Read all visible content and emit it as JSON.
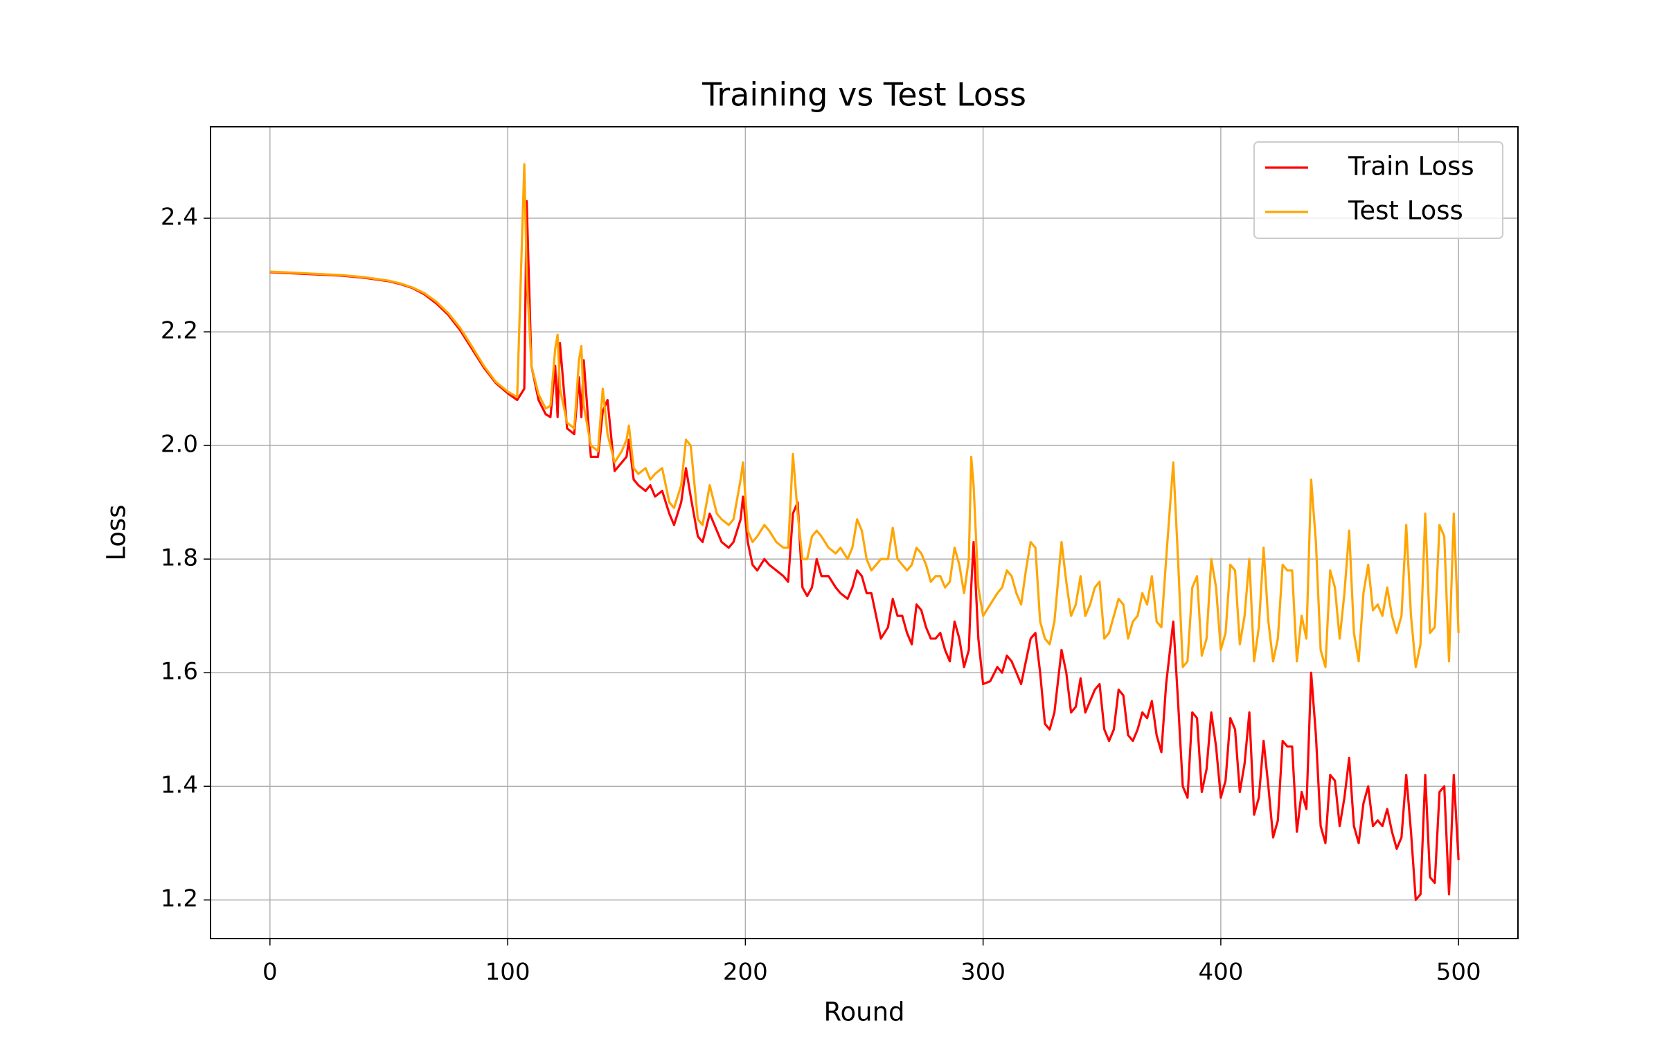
{
  "chart_data": {
    "type": "line",
    "title": "Training vs Test Loss",
    "x_label": "Round",
    "y_label": "Loss",
    "x": [
      0,
      10,
      20,
      30,
      40,
      50,
      55,
      60,
      65,
      70,
      75,
      80,
      85,
      90,
      95,
      100,
      104,
      107,
      108,
      110,
      113,
      116,
      118,
      120,
      121,
      122,
      125,
      128,
      130,
      131,
      132,
      135,
      138,
      140,
      142,
      145,
      148,
      150,
      151,
      153,
      155,
      158,
      160,
      162,
      165,
      168,
      170,
      173,
      175,
      177,
      180,
      182,
      185,
      188,
      190,
      193,
      195,
      198,
      199,
      201,
      203,
      205,
      208,
      210,
      213,
      216,
      218,
      220,
      222,
      224,
      226,
      228,
      230,
      232,
      235,
      238,
      240,
      243,
      245,
      247,
      249,
      251,
      253,
      255,
      257,
      260,
      262,
      264,
      266,
      268,
      270,
      272,
      274,
      276,
      278,
      280,
      282,
      284,
      286,
      288,
      290,
      292,
      294,
      295,
      296,
      298,
      300,
      303,
      306,
      308,
      310,
      312,
      314,
      316,
      318,
      320,
      322,
      324,
      326,
      328,
      330,
      333,
      335,
      337,
      339,
      341,
      343,
      345,
      347,
      349,
      351,
      353,
      355,
      357,
      359,
      361,
      363,
      365,
      367,
      369,
      371,
      373,
      375,
      377,
      380,
      382,
      384,
      386,
      388,
      390,
      392,
      394,
      396,
      398,
      400,
      402,
      404,
      406,
      408,
      410,
      412,
      414,
      416,
      418,
      420,
      422,
      424,
      426,
      428,
      430,
      432,
      434,
      436,
      438,
      440,
      442,
      444,
      446,
      448,
      450,
      452,
      454,
      456,
      458,
      460,
      462,
      464,
      466,
      468,
      470,
      472,
      474,
      476,
      478,
      480,
      482,
      484,
      486,
      488,
      490,
      492,
      494,
      496,
      498,
      500
    ],
    "series": [
      {
        "name": "Train Loss",
        "color": "#ff0000",
        "values": [
          2.305,
          2.303,
          2.301,
          2.299,
          2.295,
          2.289,
          2.284,
          2.277,
          2.266,
          2.25,
          2.23,
          2.203,
          2.17,
          2.137,
          2.11,
          2.092,
          2.08,
          2.1,
          2.43,
          2.14,
          2.08,
          2.055,
          2.05,
          2.14,
          2.05,
          2.18,
          2.03,
          2.02,
          2.12,
          2.05,
          2.15,
          1.98,
          1.98,
          2.06,
          2.08,
          1.955,
          1.97,
          1.98,
          2.01,
          1.94,
          1.93,
          1.92,
          1.93,
          1.91,
          1.92,
          1.88,
          1.86,
          1.9,
          1.96,
          1.91,
          1.84,
          1.83,
          1.88,
          1.85,
          1.83,
          1.82,
          1.83,
          1.87,
          1.91,
          1.83,
          1.79,
          1.78,
          1.8,
          1.79,
          1.78,
          1.77,
          1.76,
          1.88,
          1.9,
          1.75,
          1.735,
          1.75,
          1.8,
          1.77,
          1.77,
          1.75,
          1.74,
          1.73,
          1.75,
          1.78,
          1.77,
          1.74,
          1.74,
          1.7,
          1.66,
          1.68,
          1.73,
          1.7,
          1.7,
          1.67,
          1.65,
          1.72,
          1.71,
          1.68,
          1.66,
          1.66,
          1.67,
          1.64,
          1.62,
          1.69,
          1.66,
          1.61,
          1.64,
          1.75,
          1.83,
          1.66,
          1.58,
          1.585,
          1.61,
          1.6,
          1.63,
          1.62,
          1.6,
          1.58,
          1.62,
          1.66,
          1.67,
          1.6,
          1.51,
          1.5,
          1.53,
          1.64,
          1.6,
          1.53,
          1.54,
          1.59,
          1.53,
          1.55,
          1.57,
          1.58,
          1.5,
          1.48,
          1.5,
          1.57,
          1.56,
          1.49,
          1.48,
          1.5,
          1.53,
          1.52,
          1.55,
          1.49,
          1.46,
          1.58,
          1.69,
          1.55,
          1.4,
          1.38,
          1.53,
          1.52,
          1.39,
          1.43,
          1.53,
          1.47,
          1.38,
          1.41,
          1.52,
          1.5,
          1.39,
          1.44,
          1.53,
          1.35,
          1.38,
          1.48,
          1.4,
          1.31,
          1.34,
          1.48,
          1.47,
          1.47,
          1.32,
          1.39,
          1.36,
          1.6,
          1.49,
          1.33,
          1.3,
          1.42,
          1.41,
          1.33,
          1.38,
          1.45,
          1.33,
          1.3,
          1.37,
          1.4,
          1.33,
          1.34,
          1.33,
          1.36,
          1.32,
          1.29,
          1.31,
          1.42,
          1.32,
          1.2,
          1.21,
          1.42,
          1.24,
          1.23,
          1.39,
          1.4,
          1.21,
          1.42,
          1.27
        ]
      },
      {
        "name": "Test Loss",
        "color": "#ffa500",
        "values": [
          2.306,
          2.304,
          2.302,
          2.3,
          2.296,
          2.29,
          2.285,
          2.278,
          2.268,
          2.253,
          2.233,
          2.207,
          2.174,
          2.14,
          2.112,
          2.095,
          2.085,
          2.495,
          2.3,
          2.14,
          2.09,
          2.065,
          2.07,
          2.17,
          2.195,
          2.1,
          2.04,
          2.03,
          2.15,
          2.175,
          2.07,
          2.0,
          1.99,
          2.1,
          2.02,
          1.97,
          1.99,
          2.01,
          2.035,
          1.96,
          1.95,
          1.96,
          1.94,
          1.95,
          1.96,
          1.9,
          1.89,
          1.93,
          2.01,
          2.0,
          1.87,
          1.86,
          1.93,
          1.88,
          1.87,
          1.86,
          1.87,
          1.94,
          1.97,
          1.85,
          1.83,
          1.84,
          1.86,
          1.85,
          1.83,
          1.82,
          1.82,
          1.985,
          1.88,
          1.8,
          1.8,
          1.84,
          1.85,
          1.84,
          1.82,
          1.81,
          1.82,
          1.8,
          1.82,
          1.87,
          1.85,
          1.8,
          1.78,
          1.79,
          1.8,
          1.8,
          1.855,
          1.8,
          1.79,
          1.78,
          1.79,
          1.82,
          1.81,
          1.79,
          1.76,
          1.77,
          1.77,
          1.75,
          1.76,
          1.82,
          1.79,
          1.74,
          1.8,
          1.98,
          1.93,
          1.75,
          1.7,
          1.72,
          1.74,
          1.75,
          1.78,
          1.77,
          1.74,
          1.72,
          1.78,
          1.83,
          1.82,
          1.69,
          1.66,
          1.65,
          1.69,
          1.83,
          1.76,
          1.7,
          1.72,
          1.77,
          1.7,
          1.72,
          1.75,
          1.76,
          1.66,
          1.67,
          1.7,
          1.73,
          1.72,
          1.66,
          1.69,
          1.7,
          1.74,
          1.72,
          1.77,
          1.69,
          1.68,
          1.8,
          1.97,
          1.8,
          1.61,
          1.62,
          1.75,
          1.77,
          1.63,
          1.66,
          1.8,
          1.75,
          1.64,
          1.67,
          1.79,
          1.78,
          1.65,
          1.7,
          1.8,
          1.62,
          1.68,
          1.82,
          1.69,
          1.62,
          1.66,
          1.79,
          1.78,
          1.78,
          1.62,
          1.7,
          1.66,
          1.94,
          1.83,
          1.64,
          1.61,
          1.78,
          1.75,
          1.66,
          1.74,
          1.85,
          1.67,
          1.62,
          1.74,
          1.79,
          1.71,
          1.72,
          1.7,
          1.75,
          1.7,
          1.67,
          1.7,
          1.86,
          1.7,
          1.61,
          1.65,
          1.88,
          1.67,
          1.68,
          1.86,
          1.84,
          1.62,
          1.88,
          1.67
        ]
      }
    ],
    "xlim": [
      -25,
      525
    ],
    "ylim": [
      1.132,
      2.561
    ],
    "xticks": [
      0,
      100,
      200,
      300,
      400,
      500
    ],
    "yticks": [
      1.2,
      1.4,
      1.6,
      1.8,
      {
        "value": 2,
        "label": "2.0"
      },
      2.2,
      2.4
    ],
    "grid": true,
    "legend": "upper right"
  }
}
